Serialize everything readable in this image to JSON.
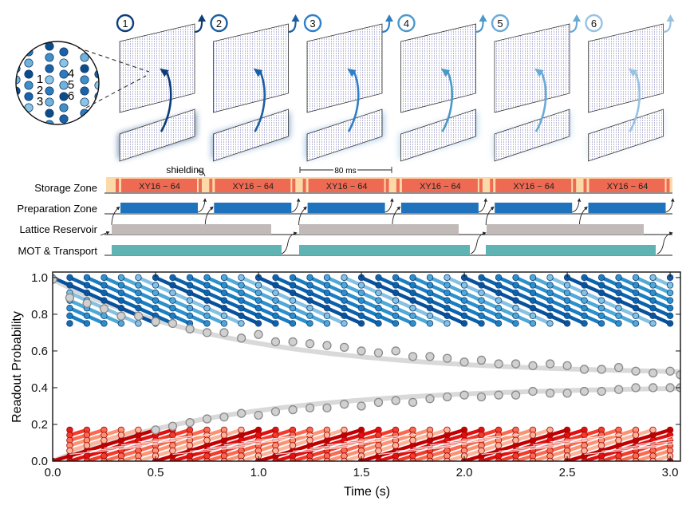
{
  "schematic": {
    "cycles": [
      {
        "label": "1",
        "color": "#0b3d7a"
      },
      {
        "label": "2",
        "color": "#1a5fa3"
      },
      {
        "label": "3",
        "color": "#2f7fc8"
      },
      {
        "label": "4",
        "color": "#4a99c9"
      },
      {
        "label": "5",
        "color": "#6aaad6"
      },
      {
        "label": "6",
        "color": "#98c2e2"
      }
    ],
    "inset_labels": [
      "1",
      "2",
      "3",
      "4",
      "5",
      "6"
    ]
  },
  "timeline": {
    "rows": [
      {
        "label": "Storage Zone",
        "color": "#ef6a53",
        "bg": "#fcd9a8"
      },
      {
        "label": "Preparation Zone",
        "color": "#1f73bd"
      },
      {
        "label": "Lattice Reservoir",
        "color": "#c1bab8"
      },
      {
        "label": "MOT & Transport",
        "color": "#5fb3b2"
      }
    ],
    "sequence_label": "XY16 − 64",
    "shielding_label": "shielding",
    "scale_label": "80 ms",
    "storage_blocks": 6
  },
  "chart_data": {
    "type": "line",
    "title": "",
    "xlabel": "Time (s)",
    "ylabel": "Readout Probability",
    "xlim": [
      0.0,
      3.05
    ],
    "ylim": [
      0.0,
      1.03
    ],
    "xticks": [
      "0.0",
      "0.5",
      "1.0",
      "1.5",
      "2.0",
      "2.5",
      "3.0"
    ],
    "yticks": [
      "0.0",
      "0.2",
      "0.4",
      "0.6",
      "0.8",
      "1.0"
    ],
    "grid": false,
    "cycle_period_s": 0.5,
    "point_spacing_s": 0.0833,
    "series": [
      {
        "name": "upper-gray-fit",
        "color": "#999999",
        "model": "0.47 + 0.52*exp(-t/0.9)"
      },
      {
        "name": "lower-gray-fit",
        "color": "#999999",
        "model": "0.41 - 0.41*exp(-t/0.9)"
      },
      {
        "name": "blue-ensemble",
        "colors": [
          "#08519c",
          "#0b63ad",
          "#1a7cc1",
          "#2b8fcc",
          "#4ea8d8",
          "#85c1e3"
        ],
        "decay": "1.0 - 0.5*t_in_cycle"
      },
      {
        "name": "red-ensemble",
        "colors": [
          "#c00000",
          "#e01010",
          "#f23b2b",
          "#fa6a50",
          "#fc9272",
          "#fcb49a"
        ],
        "rise": "0.35*t_in_cycle"
      }
    ],
    "upper_gray_points": [
      [
        0.0,
        0.99
      ],
      [
        0.083,
        0.89
      ],
      [
        0.167,
        0.86
      ],
      [
        0.25,
        0.83
      ],
      [
        0.333,
        0.79
      ],
      [
        0.417,
        0.79
      ],
      [
        0.5,
        0.76
      ],
      [
        0.583,
        0.75
      ],
      [
        0.667,
        0.72
      ],
      [
        0.75,
        0.7
      ],
      [
        0.833,
        0.7
      ],
      [
        0.917,
        0.67
      ],
      [
        1.0,
        0.69
      ],
      [
        1.083,
        0.65
      ],
      [
        1.167,
        0.65
      ],
      [
        1.25,
        0.64
      ],
      [
        1.333,
        0.63
      ],
      [
        1.417,
        0.62
      ],
      [
        1.5,
        0.6
      ],
      [
        1.583,
        0.59
      ],
      [
        1.667,
        0.6
      ],
      [
        1.75,
        0.57
      ],
      [
        1.833,
        0.57
      ],
      [
        1.917,
        0.56
      ],
      [
        2.0,
        0.54
      ],
      [
        2.083,
        0.55
      ],
      [
        2.167,
        0.53
      ],
      [
        2.25,
        0.53
      ],
      [
        2.333,
        0.52
      ],
      [
        2.417,
        0.53
      ],
      [
        2.5,
        0.52
      ],
      [
        2.583,
        0.5
      ],
      [
        2.667,
        0.5
      ],
      [
        2.75,
        0.51
      ],
      [
        2.833,
        0.49
      ],
      [
        2.917,
        0.48
      ],
      [
        3.0,
        0.49
      ],
      [
        3.05,
        0.47
      ]
    ],
    "lower_gray_points": [
      [
        0.5,
        0.17
      ],
      [
        0.583,
        0.19
      ],
      [
        0.667,
        0.21
      ],
      [
        0.75,
        0.23
      ],
      [
        0.833,
        0.24
      ],
      [
        0.917,
        0.26
      ],
      [
        1.0,
        0.25
      ],
      [
        1.083,
        0.27
      ],
      [
        1.167,
        0.28
      ],
      [
        1.25,
        0.29
      ],
      [
        1.333,
        0.29
      ],
      [
        1.417,
        0.31
      ],
      [
        1.5,
        0.3
      ],
      [
        1.583,
        0.32
      ],
      [
        1.667,
        0.33
      ],
      [
        1.75,
        0.32
      ],
      [
        1.833,
        0.34
      ],
      [
        1.917,
        0.35
      ],
      [
        2.0,
        0.36
      ],
      [
        2.083,
        0.35
      ],
      [
        2.167,
        0.36
      ],
      [
        2.25,
        0.36
      ],
      [
        2.333,
        0.38
      ],
      [
        2.417,
        0.37
      ],
      [
        2.5,
        0.37
      ],
      [
        2.583,
        0.38
      ],
      [
        2.667,
        0.38
      ],
      [
        2.75,
        0.39
      ],
      [
        2.833,
        0.4
      ],
      [
        2.917,
        0.4
      ],
      [
        3.0,
        0.4
      ],
      [
        3.05,
        0.4
      ]
    ]
  }
}
